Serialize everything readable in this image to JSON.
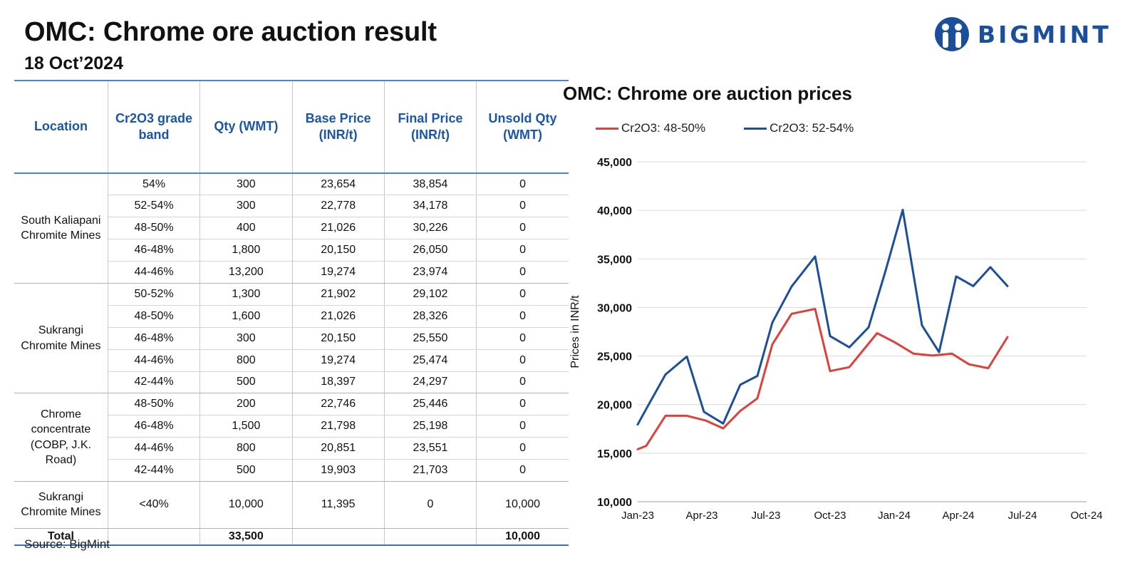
{
  "header": {
    "title": "OMC: Chrome ore auction result",
    "date": "18 Oct’2024"
  },
  "brand": {
    "name": "BIGMINT",
    "color": "#1b4f9c"
  },
  "table": {
    "columns": [
      "Location",
      "Cr2O3 grade band",
      "Qty (WMT)",
      "Base Price (INR/t)",
      "Final Price (INR/t)",
      "Unsold Qty (WMT)"
    ],
    "groups": [
      {
        "location": "South Kaliapani Chromite Mines",
        "rows": [
          [
            "54%",
            "300",
            "23,654",
            "38,854",
            "0"
          ],
          [
            "52-54%",
            "300",
            "22,778",
            "34,178",
            "0"
          ],
          [
            "48-50%",
            "400",
            "21,026",
            "30,226",
            "0"
          ],
          [
            "46-48%",
            "1,800",
            "20,150",
            "26,050",
            "0"
          ],
          [
            "44-46%",
            "13,200",
            "19,274",
            "23,974",
            "0"
          ]
        ]
      },
      {
        "location": "Sukrangi Chromite Mines",
        "rows": [
          [
            "50-52%",
            "1,300",
            "21,902",
            "29,102",
            "0"
          ],
          [
            "48-50%",
            "1,600",
            "21,026",
            "28,326",
            "0"
          ],
          [
            "46-48%",
            "300",
            "20,150",
            "25,550",
            "0"
          ],
          [
            "44-46%",
            "800",
            "19,274",
            "25,474",
            "0"
          ],
          [
            "42-44%",
            "500",
            "18,397",
            "24,297",
            "0"
          ]
        ]
      },
      {
        "location": "Chrome concentrate (COBP, J.K. Road)",
        "rows": [
          [
            "48-50%",
            "200",
            "22,746",
            "25,446",
            "0"
          ],
          [
            "46-48%",
            "1,500",
            "21,798",
            "25,198",
            "0"
          ],
          [
            "44-46%",
            "800",
            "20,851",
            "23,551",
            "0"
          ],
          [
            "42-44%",
            "500",
            "19,903",
            "21,703",
            "0"
          ]
        ]
      },
      {
        "location": "Sukrangi Chromite Mines",
        "rows": [
          [
            "<40%",
            "10,000",
            "11,395",
            "0",
            "10,000"
          ]
        ]
      }
    ],
    "total": {
      "label": "Total",
      "qty": "33,500",
      "unsold": "10,000"
    }
  },
  "source": "Source: BigMint",
  "chart_data": {
    "type": "line",
    "title": "OMC: Chrome ore auction prices",
    "ylabel": "Prices in INR/t",
    "xlabel": "",
    "ylim": [
      10000,
      45000
    ],
    "yticks": [
      10000,
      15000,
      20000,
      25000,
      30000,
      35000,
      40000,
      45000
    ],
    "ytick_labels": [
      "10,000",
      "15,000",
      "20,000",
      "25,000",
      "30,000",
      "35,000",
      "40,000",
      "45,000"
    ],
    "xlim": [
      0,
      21
    ],
    "xticks": [
      0,
      3,
      6,
      9,
      12,
      15,
      18,
      21
    ],
    "xtick_labels": [
      "Jan-23",
      "Apr-23",
      "Jul-23",
      "Oct-23",
      "Jan-24",
      "Apr-24",
      "Jul-24",
      "Oct-24"
    ],
    "legend_position": "top",
    "grid": true,
    "series": [
      {
        "name": "Cr2O3: 48-50%",
        "color": "#e0403a",
        "points": [
          [
            0,
            15400
          ],
          [
            0.4,
            15750
          ],
          [
            1.3,
            18850
          ],
          [
            2.3,
            18850
          ],
          [
            3.2,
            18350
          ],
          [
            4.0,
            17550
          ],
          [
            4.8,
            19350
          ],
          [
            5.6,
            20650
          ],
          [
            6.3,
            26200
          ],
          [
            7.2,
            29350
          ],
          [
            8.3,
            29850
          ],
          [
            9.0,
            23450
          ],
          [
            9.9,
            23850
          ],
          [
            11.2,
            27350
          ],
          [
            12.0,
            26450
          ],
          [
            12.9,
            25250
          ],
          [
            13.8,
            25050
          ],
          [
            14.7,
            25250
          ],
          [
            15.5,
            24150
          ],
          [
            16.4,
            23750
          ],
          [
            17.3,
            26950
          ]
        ]
      },
      {
        "name": "Cr2O3: 52-54%",
        "color": "#1b4f9c",
        "points": [
          [
            0,
            17950
          ],
          [
            0.4,
            19550
          ],
          [
            1.3,
            23100
          ],
          [
            2.3,
            24950
          ],
          [
            3.1,
            19250
          ],
          [
            4.0,
            18050
          ],
          [
            4.8,
            22050
          ],
          [
            5.6,
            22950
          ],
          [
            6.3,
            28450
          ],
          [
            7.2,
            32150
          ],
          [
            8.3,
            35250
          ],
          [
            9.0,
            27050
          ],
          [
            9.9,
            25900
          ],
          [
            10.8,
            27950
          ],
          [
            11.6,
            33800
          ],
          [
            12.4,
            40050
          ],
          [
            13.3,
            28150
          ],
          [
            14.1,
            25400
          ],
          [
            14.9,
            33200
          ],
          [
            15.7,
            32200
          ],
          [
            16.5,
            34150
          ],
          [
            17.3,
            32200
          ]
        ]
      }
    ]
  }
}
